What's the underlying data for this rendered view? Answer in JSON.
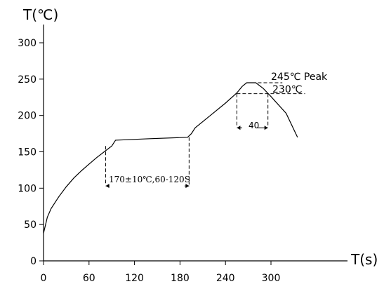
{
  "chart_data": {
    "type": "line",
    "title": "",
    "xlabel": "T(s)",
    "ylabel": "T(℃)",
    "xlim": [
      0,
      340
    ],
    "ylim": [
      0,
      300
    ],
    "xticks": [
      0,
      60,
      120,
      180,
      240,
      300
    ],
    "yticks": [
      0,
      50,
      100,
      150,
      200,
      250,
      300
    ],
    "grid": false,
    "series": [
      {
        "x": [
          0,
          5,
          10,
          20,
          30,
          40,
          50,
          60,
          70,
          80,
          90,
          95,
          140,
          190,
          195,
          200,
          220,
          240,
          255,
          262,
          268,
          280,
          290,
          300,
          320,
          335
        ],
        "y": [
          38,
          60,
          72,
          88,
          102,
          114,
          124,
          133,
          142,
          150,
          158,
          166,
          168,
          170,
          175,
          183,
          200,
          217,
          231,
          240,
          245,
          245,
          237,
          226,
          203,
          170
        ]
      }
    ],
    "annotations": {
      "peak_label": "245℃ Peak",
      "level_label": "230℃",
      "soak_label": "170±10℃,60-120S",
      "reflow_label": "40"
    }
  }
}
